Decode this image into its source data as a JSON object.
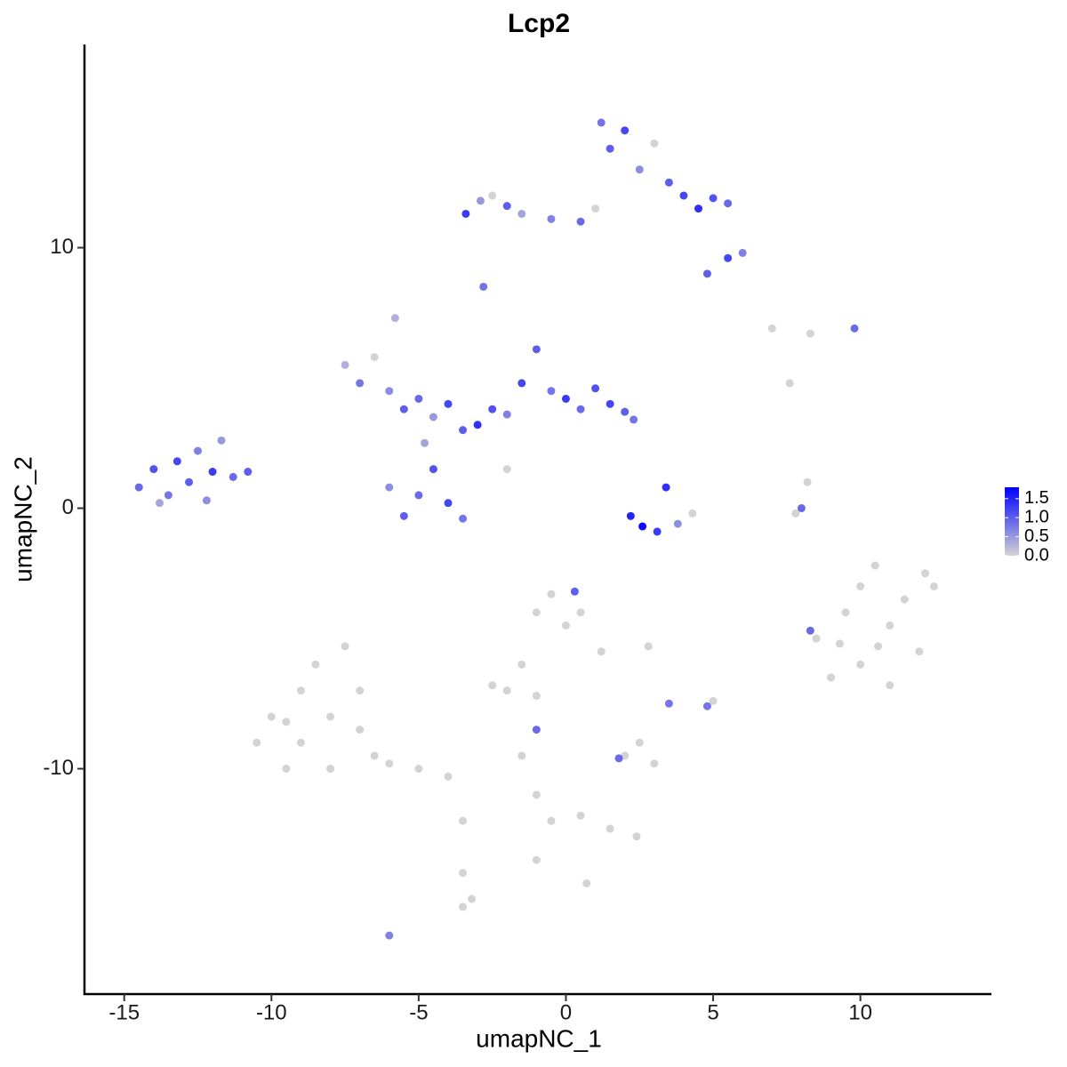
{
  "chart_data": {
    "type": "scatter",
    "title": "Lcp2",
    "x_label": "umapNC_1",
    "y_label": "umapNC_2",
    "xlim": [
      -16.35,
      14.45
    ],
    "ylim": [
      -18.65,
      17.8
    ],
    "xticks": [
      -15,
      -10,
      -5,
      0,
      5,
      10
    ],
    "yticks": [
      -10,
      0,
      10
    ],
    "colors": [
      "#d3d3d3",
      "#0000ff"
    ],
    "colorlim": [
      0,
      1.8
    ],
    "colorticks": [
      {
        "value": 0,
        "label": "0.0"
      },
      {
        "value": 0.5,
        "label": "0.5"
      },
      {
        "value": 1,
        "label": "1.0"
      },
      {
        "value": 1.5,
        "label": "1.5"
      }
    ],
    "x": [
      -14.5,
      -14,
      -13.5,
      -13.2,
      -12.8,
      -12.5,
      -12.2,
      -12,
      -11.7,
      -11.3,
      -10.8,
      -13.8,
      -7.5,
      -7,
      -6.5,
      -6,
      -5.5,
      -5,
      -4.5,
      -4,
      -3.5,
      -3,
      -2.5,
      -2,
      -1.5,
      -1,
      -0.5,
      0,
      0.5,
      1,
      1.5,
      2,
      2.3,
      -4.5,
      -5,
      -5.5,
      -6,
      -4,
      -3.5,
      -4.8,
      -5.8,
      -2,
      2.2,
      2.6,
      3.1,
      3.4,
      3.8,
      4.3,
      -3.4,
      -2.9,
      -2.5,
      -2,
      -1.5,
      -0.5,
      0.5,
      1,
      1.2,
      1.5,
      2,
      2.5,
      3,
      3.5,
      4,
      4.5,
      5,
      5.5,
      4.8,
      5.5,
      6,
      -2.8,
      7,
      8.3,
      9.8,
      7.6,
      8,
      8.2,
      7.8,
      8.5,
      9,
      9.5,
      10,
      10,
      10.5,
      11,
      11,
      11.5,
      12,
      12.5,
      12.2,
      9.3,
      10.6,
      8.3,
      -10.5,
      -10,
      -9.5,
      -9,
      -9,
      -8.5,
      -8,
      -8,
      -7.5,
      -7,
      -7,
      -6.5,
      -6,
      -5,
      -4,
      -9.5,
      -1,
      -0.5,
      0,
      0.5,
      1.2,
      -1.5,
      -2.5,
      -2,
      -1,
      2,
      2.5,
      3,
      1.8,
      0.3,
      2.8,
      3.5,
      5,
      4.8,
      -1,
      -0.5,
      0.5,
      1.5,
      2.4,
      -1,
      -3.5,
      -3.5,
      -3.2,
      -3.5,
      -6,
      0.7,
      -1.5,
      -1
    ],
    "y": [
      0.8,
      1.5,
      0.5,
      1.8,
      1.0,
      2.2,
      0.3,
      1.4,
      2.6,
      1.2,
      1.4,
      0.2,
      5.5,
      4.8,
      5.8,
      4.5,
      3.8,
      4.2,
      3.5,
      4.0,
      3.0,
      3.2,
      3.8,
      3.6,
      4.8,
      6.1,
      4.5,
      4.2,
      3.8,
      4.6,
      4.0,
      3.7,
      3.4,
      1.5,
      0.5,
      -0.3,
      0.8,
      0.2,
      -0.4,
      2.5,
      7.3,
      1.5,
      -0.3,
      -0.7,
      -0.9,
      0.8,
      -0.6,
      -0.2,
      11.3,
      11.8,
      12.0,
      11.6,
      11.3,
      11.1,
      11.0,
      11.5,
      14.8,
      13.8,
      14.5,
      13.0,
      14.0,
      12.5,
      12.0,
      11.5,
      11.9,
      11.7,
      9.0,
      9.6,
      9.8,
      8.5,
      6.9,
      6.7,
      6.9,
      4.8,
      0,
      1,
      -0.2,
      -5,
      -6.5,
      -4,
      -3,
      -6,
      -2.2,
      -4.5,
      -6.8,
      -3.5,
      -5.5,
      -3,
      -2.5,
      -5.2,
      -5.3,
      -4.7,
      -9,
      -8,
      -10,
      -7,
      -9,
      -6,
      -8,
      -10,
      -5.3,
      -8.5,
      -7,
      -9.5,
      -9.8,
      -10,
      -10.3,
      -8.2,
      -4,
      -3.3,
      -4.5,
      -4,
      -5.5,
      -6,
      -6.8,
      -7,
      -7.2,
      -9.5,
      -9,
      -9.8,
      -9.6,
      -3.2,
      -5.3,
      -7.5,
      -7.4,
      -7.6,
      -11,
      -12,
      -11.8,
      -12.3,
      -12.6,
      -13.5,
      -12,
      -14,
      -15,
      -15.3,
      -16.4,
      -14.4,
      -9.5,
      -8.5
    ],
    "values": [
      0.9,
      1.1,
      0.8,
      1.2,
      1.0,
      0.7,
      0.6,
      1.3,
      0.5,
      0.9,
      1.0,
      0.4,
      0.3,
      0.8,
      0,
      0.6,
      1.0,
      0.9,
      0.5,
      1.2,
      1.0,
      1.4,
      1.1,
      0.7,
      1.2,
      1.0,
      0.8,
      1.3,
      0.9,
      1.1,
      1.2,
      1.0,
      0.8,
      1.1,
      0.9,
      1.0,
      0.6,
      1.2,
      0.8,
      0.4,
      0.3,
      0,
      1.5,
      1.7,
      1.3,
      1.4,
      0.6,
      0,
      1.3,
      0.5,
      0,
      1.0,
      0.4,
      0.7,
      0.9,
      0,
      0.8,
      1.0,
      1.2,
      0.6,
      0,
      1.0,
      1.2,
      1.4,
      1.1,
      0.9,
      1.0,
      1.2,
      0.7,
      0.8,
      0,
      0,
      0.9,
      0,
      0.9,
      0,
      0,
      0,
      0,
      0,
      0,
      0,
      0,
      0,
      0,
      0,
      0,
      0,
      0,
      0,
      0,
      0.9,
      0,
      0,
      0,
      0,
      0,
      0,
      0,
      0,
      0,
      0,
      0,
      0,
      0,
      0,
      0,
      0,
      0,
      0,
      0,
      0,
      0,
      0,
      0,
      0,
      0,
      0,
      0,
      0,
      0.9,
      1.0,
      0,
      0.8,
      0,
      0.8,
      0,
      0,
      0,
      0,
      0,
      0,
      0,
      0,
      0,
      0,
      0.7,
      0,
      0,
      0.9
    ]
  }
}
